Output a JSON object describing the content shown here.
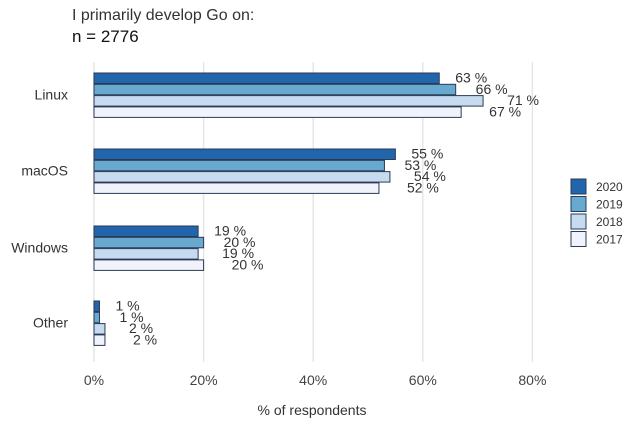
{
  "chart_data": {
    "type": "bar",
    "orientation": "horizontal",
    "title": "I primarily develop Go on:",
    "subtitle": "n = 2776",
    "xlabel": "% of respondents",
    "ylabel": "",
    "xlim": [
      0,
      80
    ],
    "x_ticks": [
      0,
      20,
      40,
      60,
      80
    ],
    "tick_suffix": "%",
    "grid": true,
    "legend_position": "right",
    "categories": [
      "Linux",
      "macOS",
      "Windows",
      "Other"
    ],
    "series": [
      {
        "name": "2020",
        "color": "#2166ac",
        "values": [
          63,
          55,
          19,
          1
        ],
        "labels": [
          "63 %",
          "55 %",
          "19 %",
          "1 %"
        ]
      },
      {
        "name": "2019",
        "color": "#67a9cf",
        "values": [
          66,
          53,
          20,
          1
        ],
        "labels": [
          "66 %",
          "53 %",
          "20 %",
          "1 %"
        ]
      },
      {
        "name": "2018",
        "color": "#c6dbef",
        "values": [
          71,
          54,
          19,
          2
        ],
        "labels": [
          "71 %",
          "54 %",
          "19 %",
          "2 %"
        ]
      },
      {
        "name": "2017",
        "color": "#f0f3fb",
        "values": [
          67,
          52,
          20,
          2
        ],
        "labels": [
          "67 %",
          "52 %",
          "20 %",
          "2 %"
        ]
      }
    ]
  }
}
